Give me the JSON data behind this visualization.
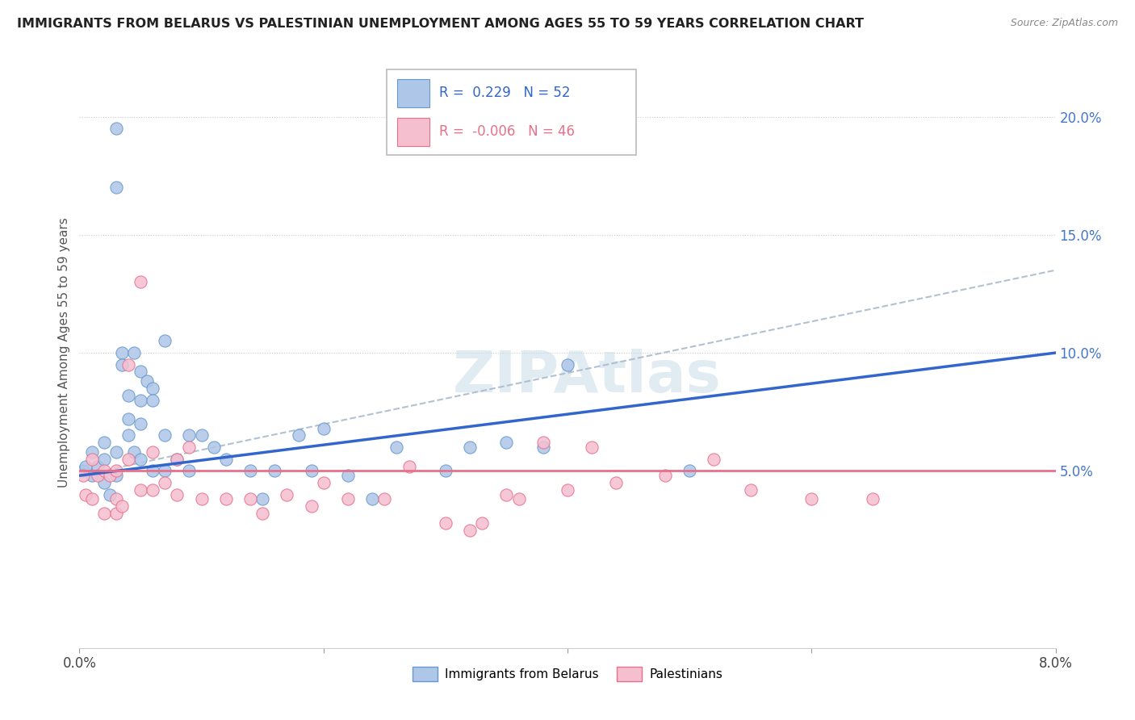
{
  "title": "IMMIGRANTS FROM BELARUS VS PALESTINIAN UNEMPLOYMENT AMONG AGES 55 TO 59 YEARS CORRELATION CHART",
  "source": "Source: ZipAtlas.com",
  "ylabel": "Unemployment Among Ages 55 to 59 years",
  "watermark": "ZIPAtlas",
  "legend_blue_r": "0.229",
  "legend_blue_n": "52",
  "legend_pink_r": "-0.006",
  "legend_pink_n": "46",
  "legend_blue_label": "Immigrants from Belarus",
  "legend_pink_label": "Palestinians",
  "blue_color": "#aec6e8",
  "blue_edge": "#6699cc",
  "pink_color": "#f5bfd0",
  "pink_edge": "#e8708a",
  "trend_blue": "#3366cc",
  "trend_pink": "#e8708a",
  "trend_gray": "#aabbcc",
  "right_ytick_vals": [
    0.05,
    0.1,
    0.15,
    0.2
  ],
  "right_yticklabels": [
    "5.0%",
    "10.0%",
    "15.0%",
    "20.0%"
  ],
  "xlim": [
    0.0,
    0.08
  ],
  "ylim": [
    -0.025,
    0.225
  ],
  "blue_trend_x0": 0.0,
  "blue_trend_y0": 0.048,
  "blue_trend_x1": 0.08,
  "blue_trend_y1": 0.1,
  "gray_trend_x0": 0.0,
  "gray_trend_y0": 0.048,
  "gray_trend_x1": 0.08,
  "gray_trend_y1": 0.135,
  "pink_trend_y": 0.05,
  "blue_scatter_x": [
    0.0003,
    0.0005,
    0.001,
    0.001,
    0.0015,
    0.002,
    0.002,
    0.002,
    0.0025,
    0.003,
    0.003,
    0.003,
    0.003,
    0.0035,
    0.0035,
    0.004,
    0.004,
    0.004,
    0.0045,
    0.0045,
    0.005,
    0.005,
    0.005,
    0.005,
    0.0055,
    0.006,
    0.006,
    0.006,
    0.007,
    0.007,
    0.007,
    0.008,
    0.009,
    0.009,
    0.01,
    0.011,
    0.012,
    0.014,
    0.015,
    0.016,
    0.018,
    0.019,
    0.02,
    0.022,
    0.024,
    0.026,
    0.03,
    0.032,
    0.035,
    0.038,
    0.04,
    0.05
  ],
  "blue_scatter_y": [
    0.05,
    0.052,
    0.058,
    0.048,
    0.052,
    0.062,
    0.055,
    0.045,
    0.04,
    0.195,
    0.17,
    0.058,
    0.048,
    0.1,
    0.095,
    0.082,
    0.072,
    0.065,
    0.1,
    0.058,
    0.092,
    0.08,
    0.07,
    0.055,
    0.088,
    0.085,
    0.08,
    0.05,
    0.105,
    0.065,
    0.05,
    0.055,
    0.065,
    0.05,
    0.065,
    0.06,
    0.055,
    0.05,
    0.038,
    0.05,
    0.065,
    0.05,
    0.068,
    0.048,
    0.038,
    0.06,
    0.05,
    0.06,
    0.062,
    0.06,
    0.095,
    0.05
  ],
  "pink_scatter_x": [
    0.0003,
    0.0005,
    0.001,
    0.001,
    0.0015,
    0.002,
    0.002,
    0.0025,
    0.003,
    0.003,
    0.003,
    0.0035,
    0.004,
    0.004,
    0.005,
    0.005,
    0.006,
    0.006,
    0.007,
    0.008,
    0.008,
    0.009,
    0.01,
    0.012,
    0.014,
    0.015,
    0.017,
    0.019,
    0.02,
    0.022,
    0.025,
    0.027,
    0.03,
    0.032,
    0.033,
    0.035,
    0.036,
    0.038,
    0.04,
    0.042,
    0.044,
    0.048,
    0.052,
    0.055,
    0.06,
    0.065
  ],
  "pink_scatter_y": [
    0.048,
    0.04,
    0.055,
    0.038,
    0.048,
    0.05,
    0.032,
    0.048,
    0.05,
    0.038,
    0.032,
    0.035,
    0.095,
    0.055,
    0.042,
    0.13,
    0.042,
    0.058,
    0.045,
    0.055,
    0.04,
    0.06,
    0.038,
    0.038,
    0.038,
    0.032,
    0.04,
    0.035,
    0.045,
    0.038,
    0.038,
    0.052,
    0.028,
    0.025,
    0.028,
    0.04,
    0.038,
    0.062,
    0.042,
    0.06,
    0.045,
    0.048,
    0.055,
    0.042,
    0.038,
    0.038
  ]
}
